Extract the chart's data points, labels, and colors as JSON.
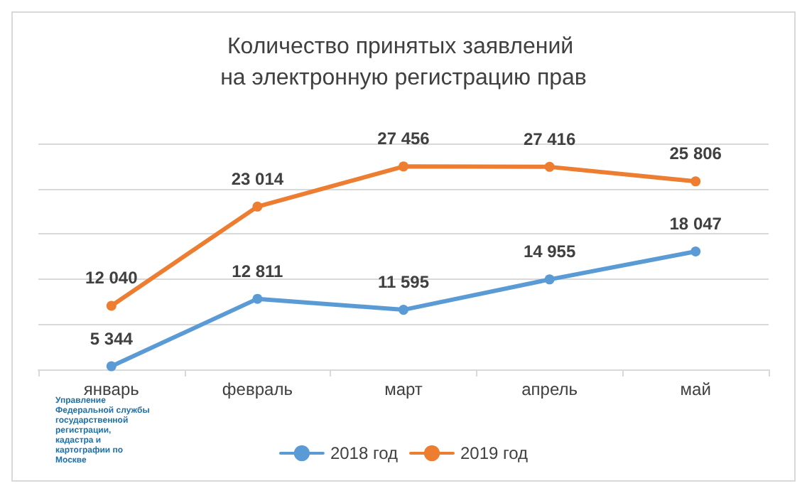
{
  "chart_data": {
    "type": "line",
    "title": "Количество принятых заявлений на электронную регистрацию прав",
    "categories": [
      "январь",
      "февраль",
      "март",
      "апрель",
      "май"
    ],
    "series": [
      {
        "name": "2018 год",
        "color": "#5b9bd5",
        "values": [
          5344,
          12811,
          11595,
          14955,
          18047
        ],
        "value_labels": [
          "5 344",
          "12 811",
          "11 595",
          "14 955",
          "18 047"
        ]
      },
      {
        "name": "2019 год",
        "color": "#ed7d31",
        "values": [
          12040,
          23014,
          27456,
          27416,
          25806
        ],
        "value_labels": [
          "12 040",
          "23 014",
          "27 456",
          "27 416",
          "25 806"
        ]
      }
    ],
    "ylim": [
      5000,
      30000
    ],
    "yticks": [
      {
        "value": 5000,
        "label": null
      },
      {
        "value": 10000,
        "label": null
      },
      {
        "value": 15000,
        "label": null
      },
      {
        "value": 20000,
        "label": null
      },
      {
        "value": 25000,
        "label": null
      },
      {
        "value": 30000,
        "label": null
      }
    ],
    "tick_labels": "x",
    "grid": "y",
    "legend": "bottom",
    "marker": "circle",
    "line_style": "solid",
    "annotations": [
      "Управление Федеральной службы государственной регистрации, кадастра и картографии по Москве"
    ]
  }
}
